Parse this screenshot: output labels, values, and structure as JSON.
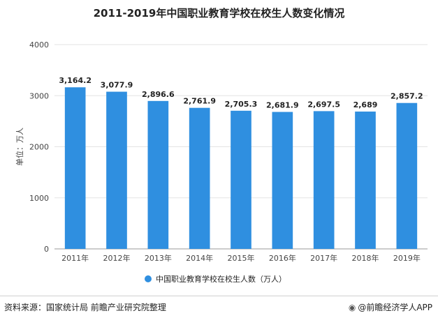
{
  "chart_data": {
    "type": "bar",
    "title": "2011-2019年中国职业教育学校在校生人数变化情况",
    "ylabel": "单位：万人",
    "xlabel": "",
    "ylim": [
      0,
      4000
    ],
    "yticks": [
      "0",
      "1000",
      "2000",
      "3000",
      "4000"
    ],
    "grid": true,
    "legend_position": "bottom",
    "categories": [
      "2011年",
      "2012年",
      "2013年",
      "2014年",
      "2015年",
      "2016年",
      "2017年",
      "2018年",
      "2019年"
    ],
    "series": [
      {
        "name": "中国职业教育学校在校生人数（万人）",
        "values": [
          3164.2,
          3077.9,
          2896.6,
          2761.9,
          2705.3,
          2681.9,
          2697.5,
          2689,
          2857.2
        ],
        "labels": [
          "3,164.2",
          "3,077.9",
          "2,896.6",
          "2,761.9",
          "2,705.3",
          "2,681.9",
          "2,697.5",
          "2,689",
          "2,857.2"
        ],
        "color": "#2f8fe0"
      }
    ]
  },
  "footer": {
    "source": "资料来源：国家统计局 前瞻产业研究院整理",
    "brand": "@前瞻经济学人APP",
    "brand_icon": "camera-icon"
  }
}
